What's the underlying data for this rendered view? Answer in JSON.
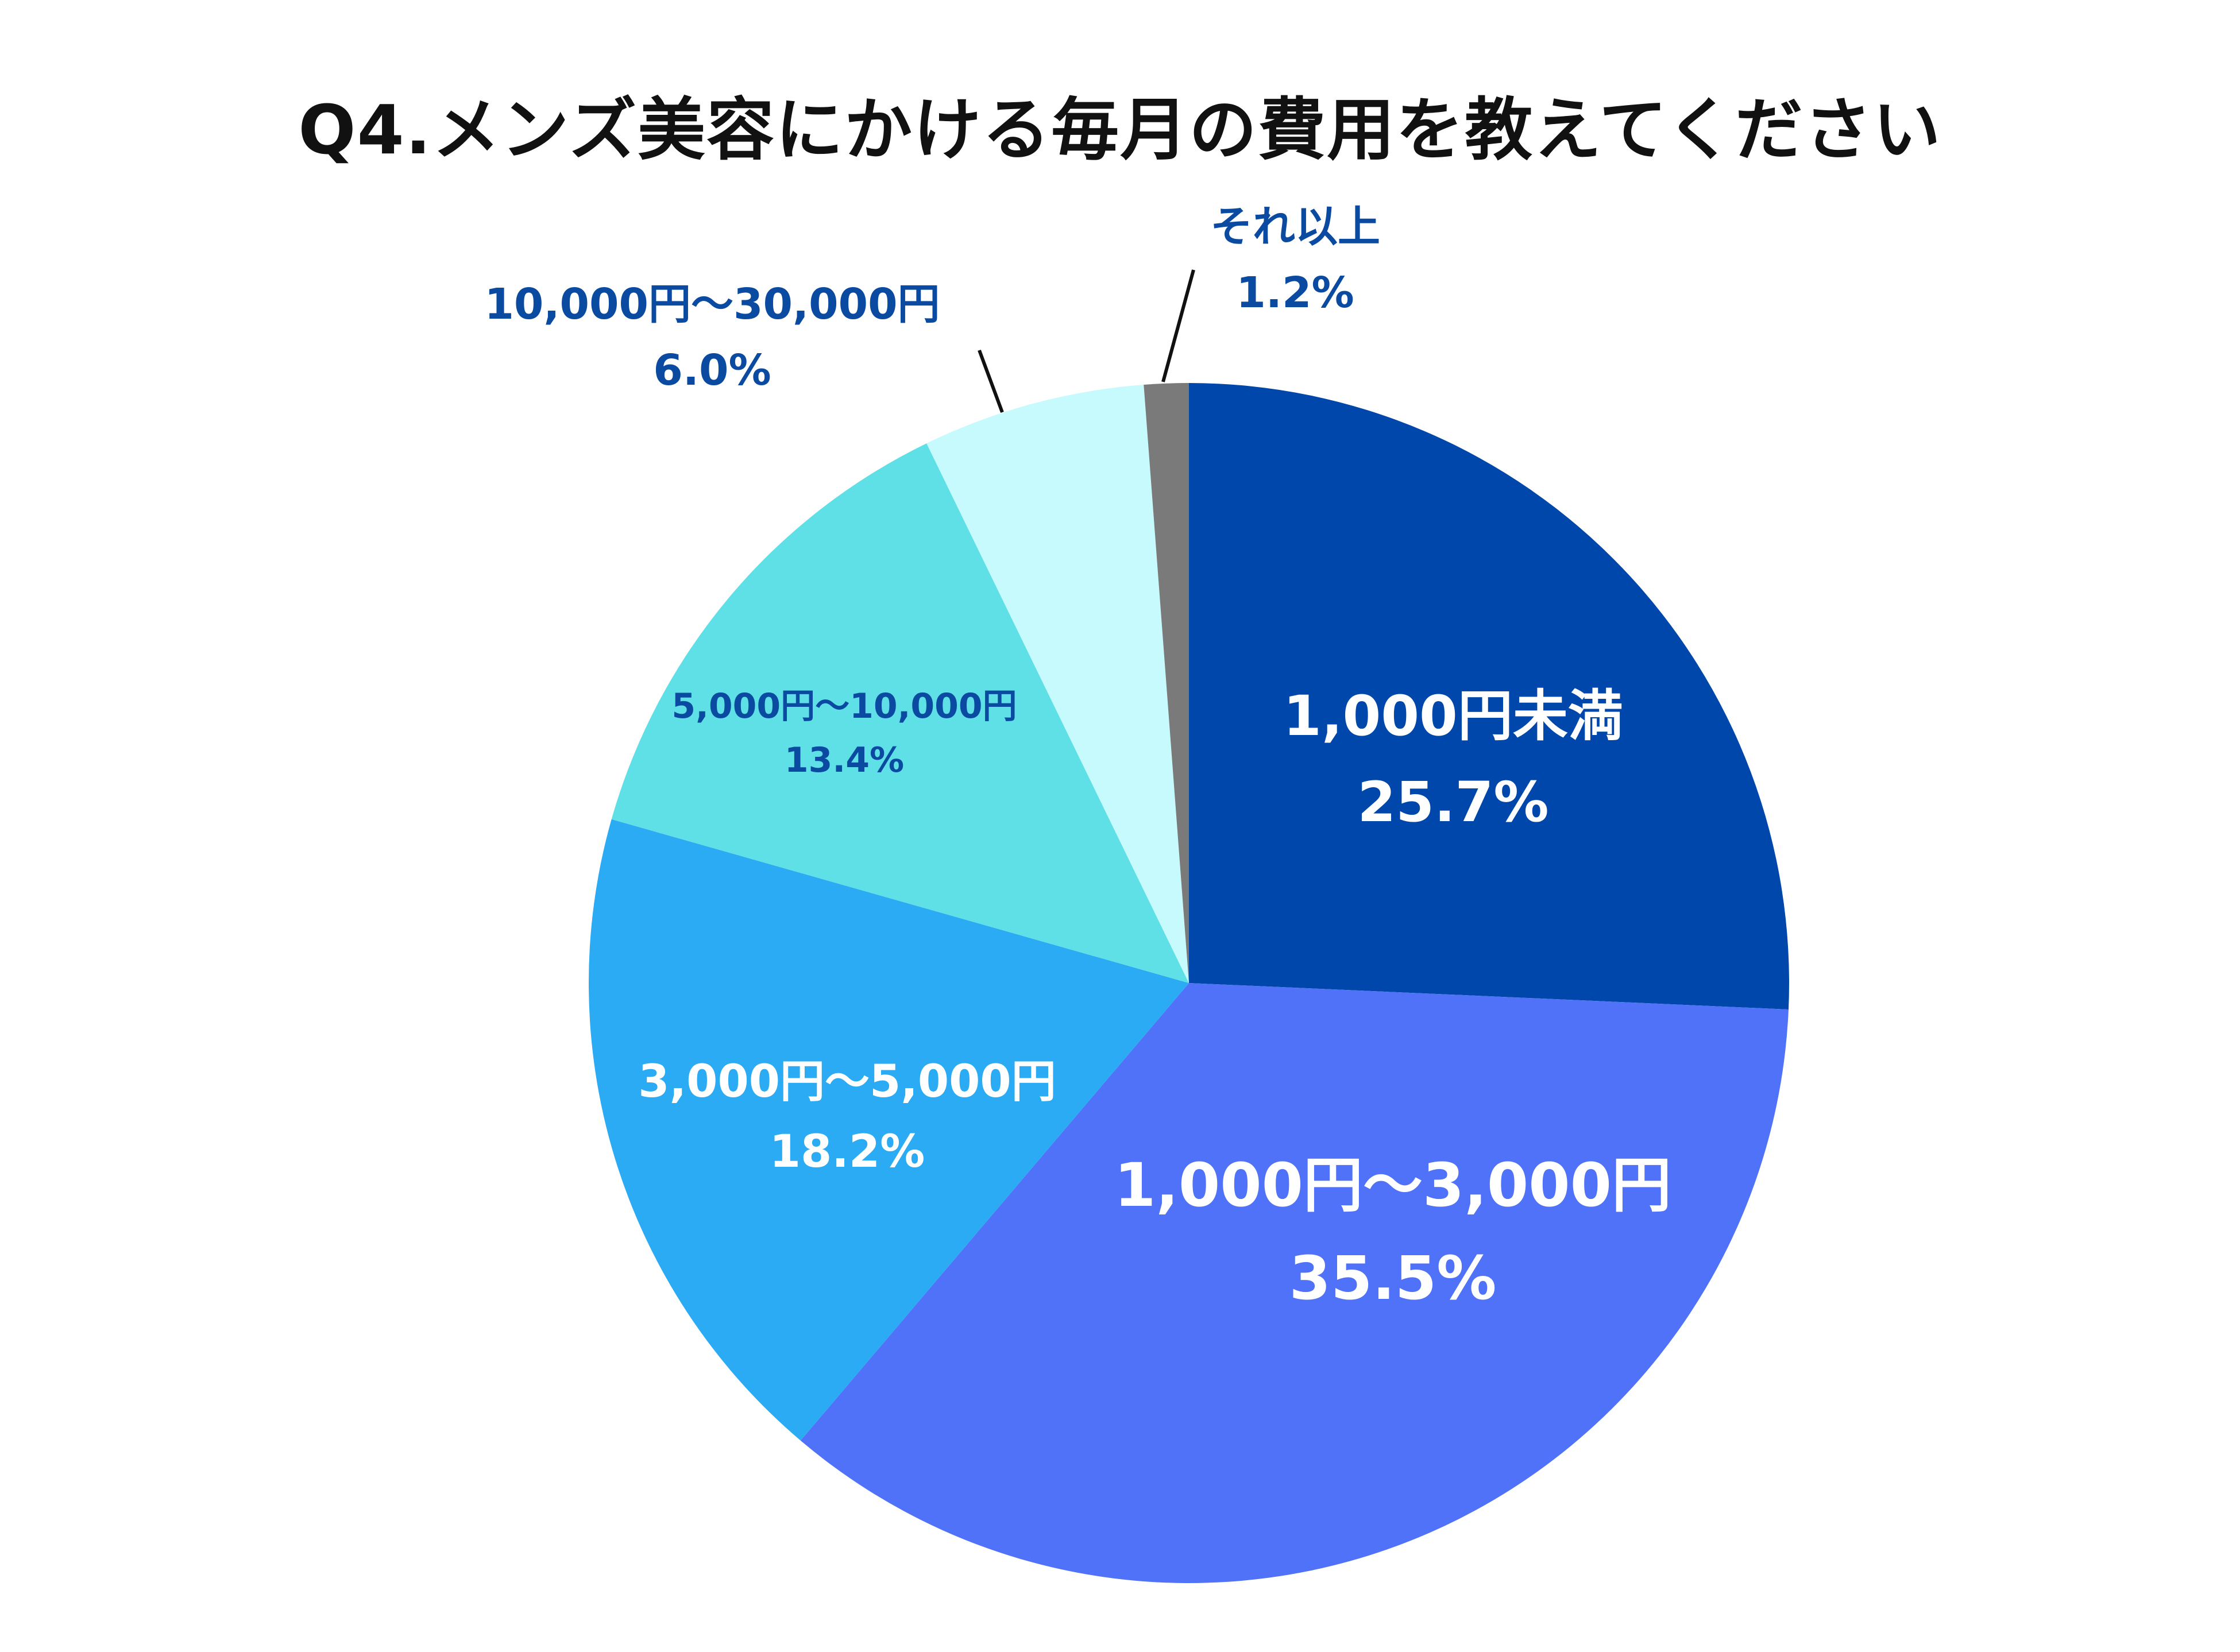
{
  "chart_data": {
    "type": "pie",
    "title": "Q4.メンズ美容にかける毎月の費用を教えてください",
    "start_angle_deg": 0,
    "direction": "clockwise",
    "slices": [
      {
        "label": "1,000円未満",
        "value_label": "25.7%",
        "value": 25.7,
        "color": "#0047AB",
        "text_color": "#ffffff",
        "label_position": "inside"
      },
      {
        "label": "1,000円〜3,000円",
        "value_label": "35.5%",
        "value": 35.5,
        "color": "#4F72F8",
        "text_color": "#ffffff",
        "label_position": "inside"
      },
      {
        "label": "3,000円〜5,000円",
        "value_label": "18.2%",
        "value": 18.2,
        "color": "#2AABF3",
        "text_color": "#ffffff",
        "label_position": "inside"
      },
      {
        "label": "5,000円〜10,000円",
        "value_label": "13.4%",
        "value": 13.4,
        "color": "#5FE0E6",
        "text_color": "#0A4AA0",
        "label_position": "inside"
      },
      {
        "label": "10,000円〜30,000円",
        "value_label": "6.0%",
        "value": 6.0,
        "color": "#C6FAFD",
        "text_color": "#0A4AA0",
        "label_position": "outside"
      },
      {
        "label": "それ以上",
        "value_label": "1.2%",
        "value": 1.2,
        "color": "#7A7A7A",
        "text_color": "#0A4AA0",
        "label_position": "outside"
      }
    ]
  }
}
